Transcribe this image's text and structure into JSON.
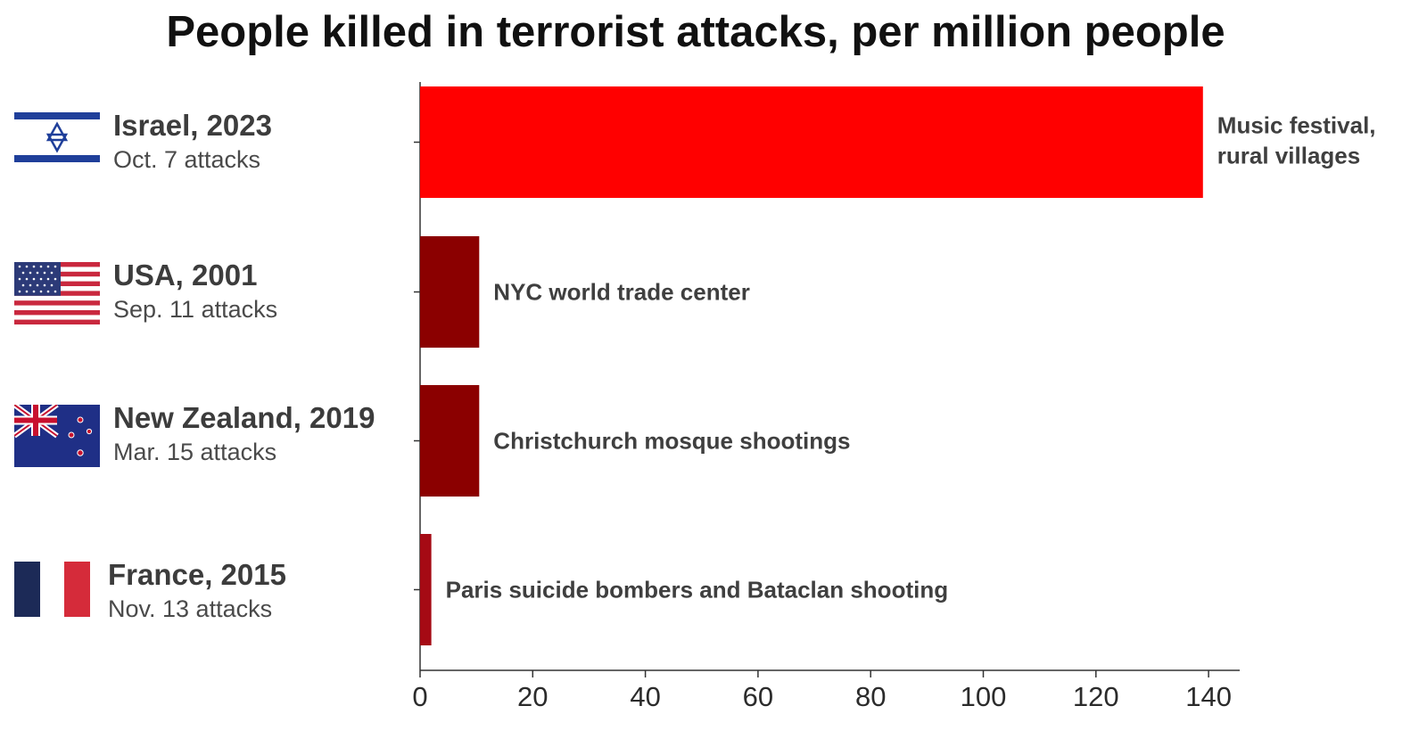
{
  "chart_data": {
    "type": "bar",
    "orientation": "horizontal",
    "title": "People killed in terrorist attacks, per million people",
    "categories": [
      "Israel, 2023",
      "USA, 2001",
      "New Zealand, 2019",
      "France, 2015"
    ],
    "subtitles": [
      "Oct. 7 attacks",
      "Sep. 11 attacks",
      "Mar. 15 attacks",
      "Nov. 13 attacks"
    ],
    "values": [
      139,
      10.5,
      10.5,
      2
    ],
    "annotations": [
      [
        "Music festival,",
        "rural villages"
      ],
      [
        "NYC world trade center"
      ],
      [
        "Christchurch mosque shootings"
      ],
      [
        "Paris suicide bombers and Bataclan shooting"
      ]
    ],
    "bar_colors": [
      "#ff0000",
      "#8b0000",
      "#8b0000",
      "#a50a14"
    ],
    "flags": [
      "israel-flag-icon",
      "usa-flag-icon",
      "new-zealand-flag-icon",
      "france-flag-icon"
    ],
    "xlim": [
      0,
      145
    ],
    "xticks": [
      0,
      20,
      40,
      60,
      80,
      100,
      120,
      140
    ],
    "grid": false,
    "xlabel": "",
    "ylabel": ""
  }
}
